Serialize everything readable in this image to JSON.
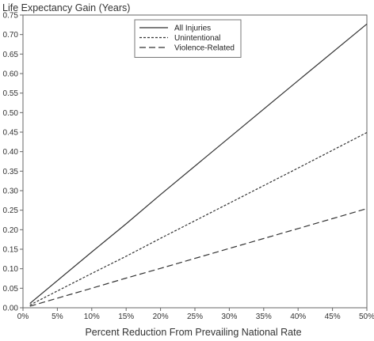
{
  "chart_data": {
    "type": "line",
    "title": "",
    "ylabel": "Life Expectancy Gain (Years)",
    "xlabel": "Percent Reduction From Prevailing National Rate",
    "xlim": [
      0,
      50
    ],
    "ylim": [
      0,
      0.75
    ],
    "x_ticks": [
      0,
      5,
      10,
      15,
      20,
      25,
      30,
      35,
      40,
      45,
      50
    ],
    "x_tick_labels": [
      "0%",
      "5%",
      "10%",
      "15%",
      "20%",
      "25%",
      "30%",
      "35%",
      "40%",
      "45%",
      "50%"
    ],
    "y_ticks": [
      0.0,
      0.05,
      0.1,
      0.15,
      0.2,
      0.25,
      0.3,
      0.35,
      0.4,
      0.45,
      0.5,
      0.55,
      0.6,
      0.65,
      0.7,
      0.75
    ],
    "y_tick_labels": [
      "0.00",
      "0.05",
      "0.10",
      "0.15",
      "0.20",
      "0.25",
      "0.30",
      "0.35",
      "0.40",
      "0.45",
      "0.50",
      "0.55",
      "0.60",
      "0.65",
      "0.70",
      "0.75"
    ],
    "grid": false,
    "legend_position": "top-center",
    "series": [
      {
        "name": "All Injuries",
        "style": "solid",
        "color": "#333333",
        "x": [
          1,
          10,
          15,
          20,
          30,
          40,
          50
        ],
        "y": [
          0.011,
          0.143,
          0.215,
          0.29,
          0.436,
          0.582,
          0.727
        ]
      },
      {
        "name": "Unintentional",
        "style": "dotted",
        "color": "#333333",
        "x": [
          1,
          10,
          15,
          20,
          30,
          40,
          50
        ],
        "y": [
          0.007,
          0.088,
          0.132,
          0.178,
          0.268,
          0.358,
          0.449
        ]
      },
      {
        "name": "Violence-Related",
        "style": "dashed",
        "color": "#333333",
        "x": [
          1,
          10,
          15,
          20,
          30,
          40,
          50
        ],
        "y": [
          0.004,
          0.05,
          0.076,
          0.101,
          0.152,
          0.203,
          0.254
        ]
      }
    ]
  }
}
